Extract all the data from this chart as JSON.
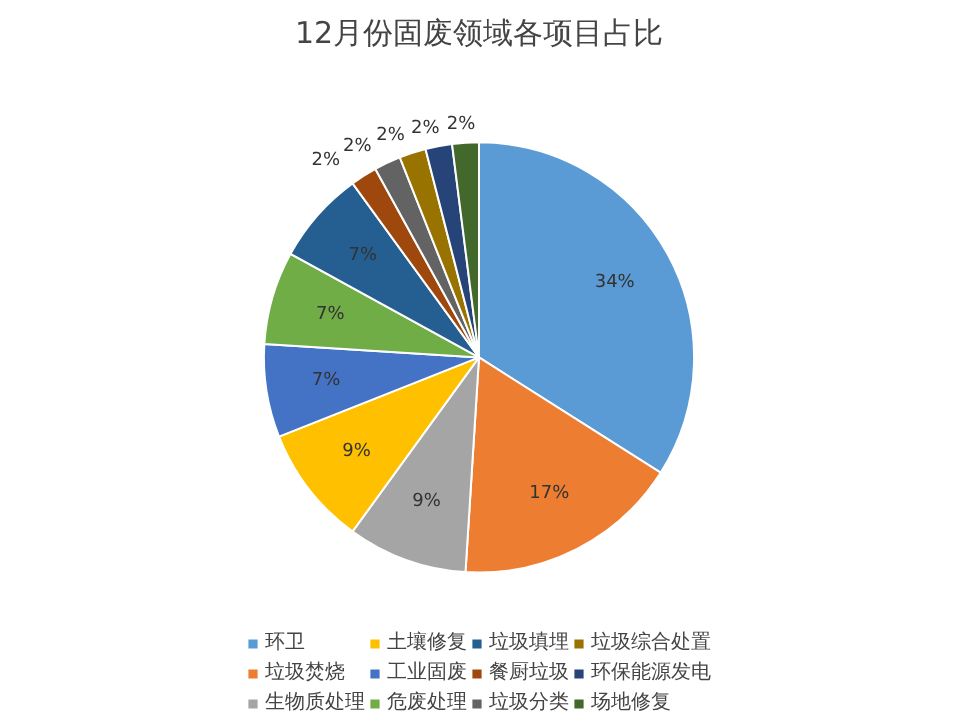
{
  "chart_data": {
    "type": "pie",
    "title": "12月份固废领域各项目占比",
    "categories": [
      "环卫",
      "垃圾焚烧",
      "生物质处理",
      "土壤修复",
      "工业固废",
      "危废处理",
      "垃圾填埋",
      "餐厨垃圾",
      "垃圾分类",
      "垃圾综合处置",
      "环保能源发电",
      "场地修复"
    ],
    "values": [
      34,
      17,
      9,
      9,
      7,
      7,
      7,
      2,
      2,
      2,
      2,
      2
    ],
    "value_labels": [
      "34%",
      "17%",
      "9%",
      "9%",
      "7%",
      "7%",
      "7%",
      "2%",
      "2%",
      "2%",
      "2%",
      "2%"
    ],
    "colors": [
      "#5b9bd5",
      "#ed7d31",
      "#a5a5a5",
      "#ffc000",
      "#4472c4",
      "#70ad47",
      "#255e91",
      "#9e480e",
      "#636363",
      "#997300",
      "#264478",
      "#43682b"
    ],
    "legend": "bottom"
  }
}
